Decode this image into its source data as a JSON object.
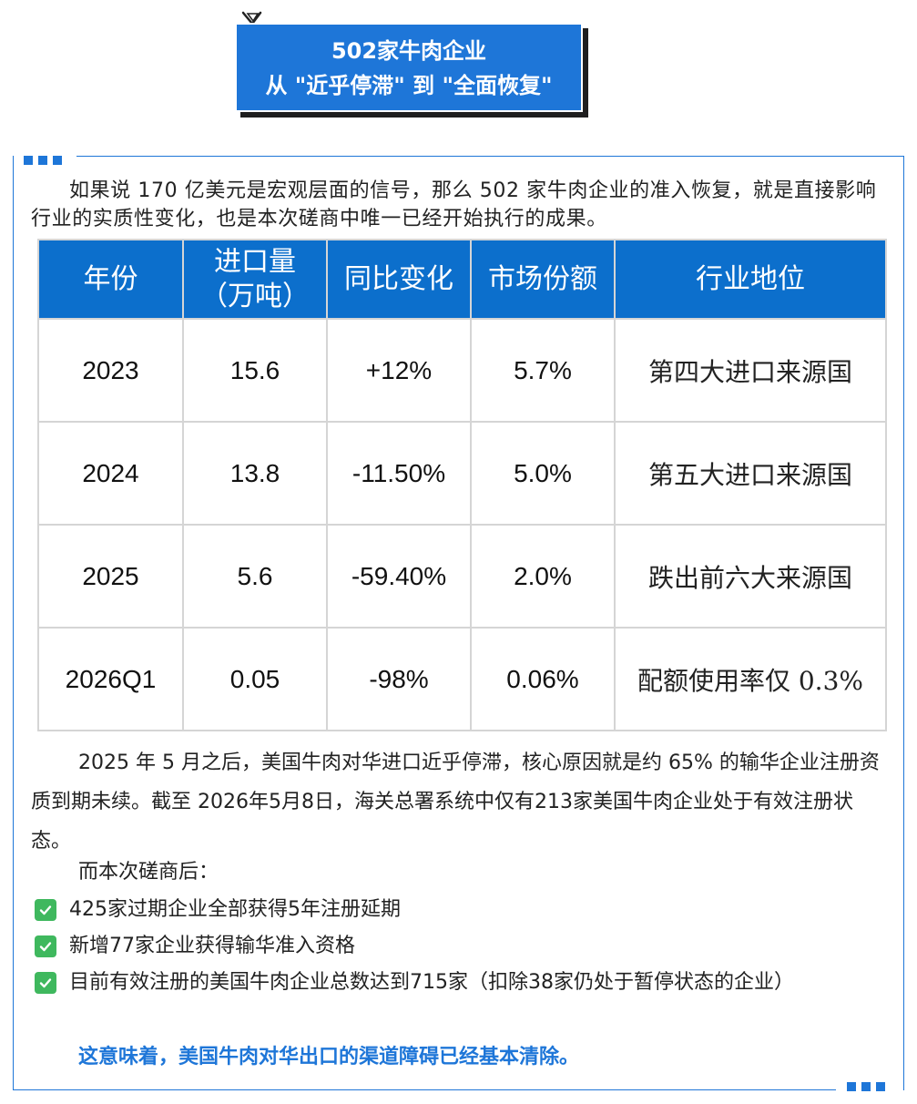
{
  "banner": {
    "line1": "502家牛肉企业",
    "line2": "从 \"近乎停滞\" 到 \"全面恢复\""
  },
  "intro": "如果说 170 亿美元是宏观层面的信号，那么 502 家牛肉企业的准入恢复，就是直接影响行业的实质性变化，也是本次磋商中唯一已经开始执行的成果。",
  "table": {
    "headers": {
      "year": "年份",
      "volume_line1": "进口量",
      "volume_line2": "（万吨）",
      "yoy": "同比变化",
      "share": "市场份额",
      "position": "行业地位"
    },
    "rows": [
      {
        "year": "2023",
        "volume": "15.6",
        "yoy": "+12%",
        "share": "5.7%",
        "position": "第四大进口来源国"
      },
      {
        "year": "2024",
        "volume": "13.8",
        "yoy": "-11.50%",
        "share": "5.0%",
        "position": "第五大进口来源国"
      },
      {
        "year": "2025",
        "volume": "5.6",
        "yoy": "-59.40%",
        "share": "2.0%",
        "position": "跌出前六大来源国"
      },
      {
        "year": "2026Q1",
        "volume": "0.05",
        "yoy": "-98%",
        "share": "0.06%",
        "position": "配额使用率仅 0.3%"
      }
    ]
  },
  "para2": "2025 年 5 月之后，美国牛肉对华进口近乎停滞，核心原因就是约 65% 的输华企业注册资质到期未续。截至 2026年5月8日，海关总署系统中仅有213家美国牛肉企业处于有效注册状态。",
  "para3": "而本次磋商后：",
  "checklist": [
    "425家过期企业全部获得5年注册延期",
    "新增77家企业获得输华准入资格",
    "目前有效注册的美国牛肉企业总数达到715家（扣除38家仍处于暂停状态的企业）"
  ],
  "conclusion": "这意味着，美国牛肉对华出口的渠道障碍已经基本清除。",
  "colors": {
    "accent": "#1e76d8",
    "table_header": "#0c6fcc",
    "check": "#3fb85e"
  }
}
